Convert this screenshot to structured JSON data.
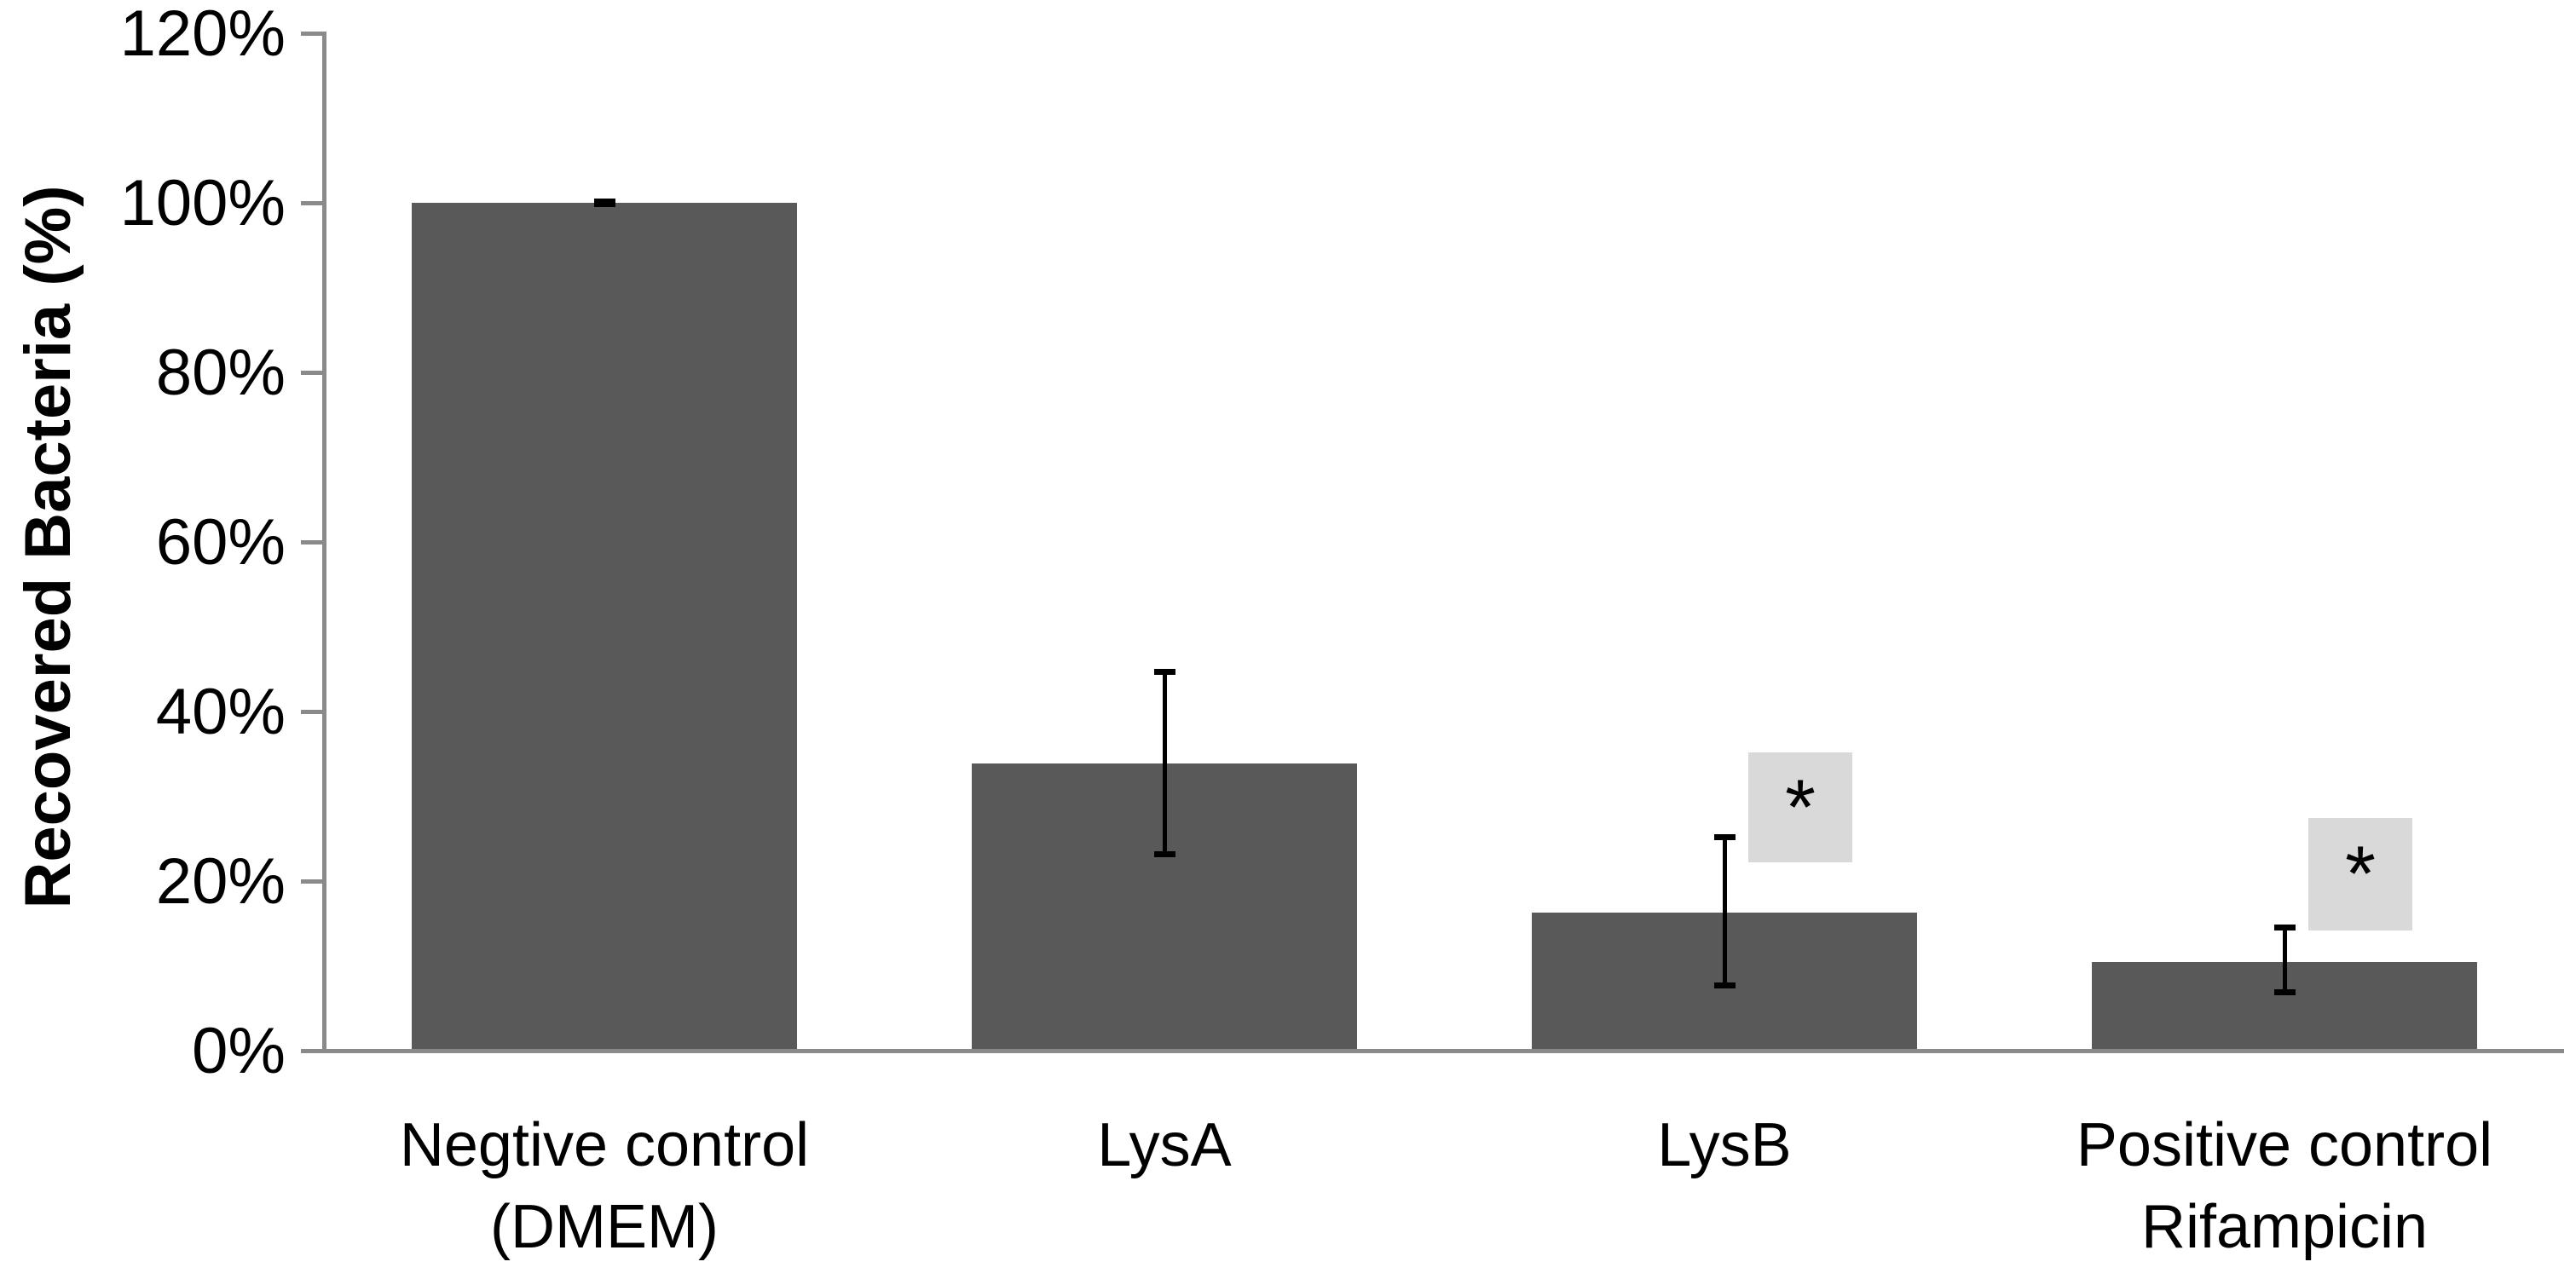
{
  "chart_data": {
    "type": "bar",
    "title": "",
    "xlabel": "",
    "ylabel": "Recovered Bacteria (%)",
    "ylim": [
      0,
      120
    ],
    "ytick_labels": [
      "0%",
      "20%",
      "40%",
      "60%",
      "80%",
      "100%",
      "120%"
    ],
    "ytick_values": [
      0,
      20,
      40,
      60,
      80,
      100,
      120
    ],
    "grid": false,
    "legend": null,
    "bar_color": "#595959",
    "axis_color": "#8A8A8A",
    "error_bar_color": "#000000",
    "sig_box_color": "#D9D9D9",
    "sig_symbol": "*",
    "categories": [
      {
        "label_lines": [
          "Negtive control",
          "(DMEM)"
        ],
        "value": 100,
        "error_low": 99.8,
        "error_high": 100.2,
        "significant": false
      },
      {
        "label_lines": [
          "LysA"
        ],
        "value": 33.9,
        "error_low": 23.1,
        "error_high": 44.7,
        "significant": false
      },
      {
        "label_lines": [
          "LysB"
        ],
        "value": 16.3,
        "error_low": 7.6,
        "error_high": 25.2,
        "significant": true
      },
      {
        "label_lines": [
          "Positive control",
          "Rifampicin"
        ],
        "value": 10.5,
        "error_low": 6.8,
        "error_high": 14.6,
        "significant": true
      }
    ],
    "significance_boxes": [
      {
        "category_index": 2,
        "symbol": "*",
        "y_bottom_pct": 22.2,
        "y_top_pct": 35.2
      },
      {
        "category_index": 3,
        "symbol": "*",
        "y_bottom_pct": 14.2,
        "y_top_pct": 27.4
      }
    ]
  }
}
